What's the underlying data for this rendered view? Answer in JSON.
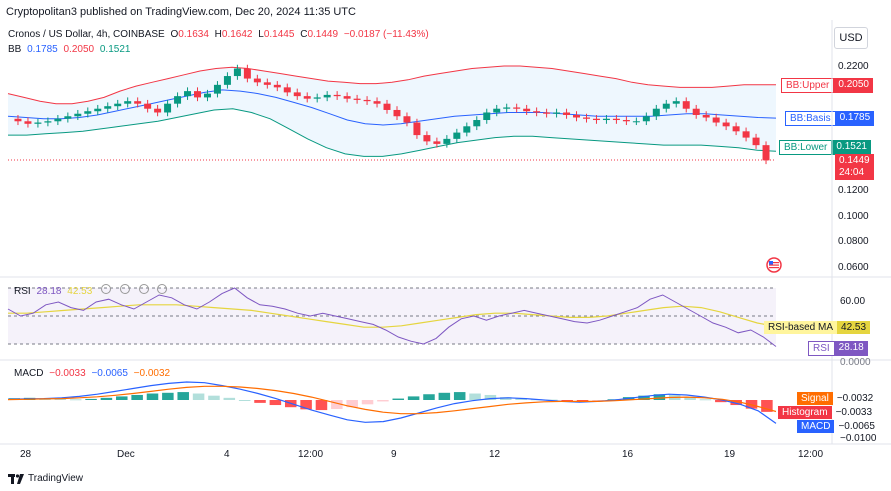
{
  "publisher_line": "Cryptopolitan3 published on TradingView.com, Dec 20, 2024 11:35 UTC",
  "symbol": {
    "title": "Cronos / US Dollar, 4h, COINBASE",
    "o_label": "O",
    "o": "0.1634",
    "h_label": "H",
    "h": "0.1642",
    "l_label": "L",
    "l": "0.1445",
    "c_label": "C",
    "c": "0.1449",
    "change": "−0.0187 (−11.43%)"
  },
  "bb_legend": {
    "name": "BB",
    "basis": "0.1785",
    "upper": "0.2050",
    "lower": "0.1521"
  },
  "currency_button": "USD",
  "price_axis": [
    "0.2200",
    "0.1400",
    "0.1200",
    "0.1000",
    "0.0800",
    "0.0600"
  ],
  "price_tags": {
    "bb_upper_label": "BB:Upper",
    "bb_upper_value": "0.2050",
    "bb_basis_label": "BB:Basis",
    "bb_basis_value": "0.1785",
    "bb_lower_label": "BB:Lower",
    "bb_lower_value": "0.1521",
    "last_price": "0.1449",
    "countdown": "24:04"
  },
  "rsi": {
    "legend_name": "RSI",
    "legend_value": "28.18",
    "legend_ma": "42.53",
    "axis_60": "60.00",
    "axis_0": "0.0000",
    "ma_label": "RSI-based MA",
    "ma_value": "42.53",
    "rsi_label": "RSI",
    "rsi_value": "28.18"
  },
  "macd": {
    "legend_name": "MACD",
    "v1": "−0.0033",
    "v2": "−0.0065",
    "v3": "−0.0032",
    "signal_label": "Signal",
    "signal_value": "−0.0032",
    "hist_label": "Histogram",
    "hist_value": "−0.0033",
    "macd_label": "MACD",
    "macd_value": "−0.0065",
    "axis_neg": "−0.0100"
  },
  "x_axis": [
    "28",
    "Dec",
    "4",
    "12:00",
    "9",
    "12",
    "16",
    "19",
    "12:00"
  ],
  "footer": "TradingView",
  "colors": {
    "up": "#089981",
    "down": "#f23645",
    "upper": "#f23645",
    "basis": "#2962ff",
    "lower": "#089981",
    "rsi": "#7e57c2",
    "rsi_ma": "#e5d53f",
    "signal": "#ff6d00",
    "macd": "#2962ff"
  },
  "chart_data": [
    {
      "type": "line",
      "title": "Cronos / US Dollar, 4h, COINBASE",
      "x_ticks": [
        "28",
        "Dec",
        "4",
        "12:00",
        "9",
        "12",
        "16",
        "19",
        "12:00"
      ],
      "y_ticks": [
        0.22,
        0.14,
        0.12,
        0.1,
        0.08,
        0.06
      ],
      "close": [
        0.178,
        0.176,
        0.174,
        0.175,
        0.176,
        0.178,
        0.18,
        0.182,
        0.184,
        0.186,
        0.188,
        0.19,
        0.192,
        0.19,
        0.186,
        0.183,
        0.19,
        0.196,
        0.2,
        0.195,
        0.198,
        0.205,
        0.212,
        0.218,
        0.21,
        0.207,
        0.205,
        0.203,
        0.199,
        0.196,
        0.194,
        0.195,
        0.197,
        0.196,
        0.194,
        0.193,
        0.192,
        0.19,
        0.185,
        0.18,
        0.175,
        0.165,
        0.16,
        0.158,
        0.162,
        0.167,
        0.172,
        0.177,
        0.183,
        0.186,
        0.187,
        0.186,
        0.184,
        0.183,
        0.182,
        0.183,
        0.181,
        0.179,
        0.178,
        0.177,
        0.178,
        0.177,
        0.176,
        0.176,
        0.18,
        0.186,
        0.19,
        0.192,
        0.186,
        0.181,
        0.179,
        0.175,
        0.172,
        0.168,
        0.163,
        0.157,
        0.1449
      ],
      "bb_upper": [
        0.198,
        0.195,
        0.192,
        0.19,
        0.19,
        0.192,
        0.195,
        0.2,
        0.204,
        0.207,
        0.21,
        0.213,
        0.216,
        0.218,
        0.219,
        0.218,
        0.216,
        0.214,
        0.212,
        0.21,
        0.208,
        0.207,
        0.206,
        0.206,
        0.207,
        0.209,
        0.212,
        0.214,
        0.216,
        0.218,
        0.219,
        0.22,
        0.22,
        0.219,
        0.218,
        0.216,
        0.214,
        0.212,
        0.21,
        0.207,
        0.205,
        0.204,
        0.203,
        0.203,
        0.203,
        0.204,
        0.205,
        0.205,
        0.205
      ],
      "bb_basis": [
        0.18,
        0.179,
        0.178,
        0.178,
        0.179,
        0.181,
        0.184,
        0.187,
        0.19,
        0.193,
        0.196,
        0.199,
        0.201,
        0.2,
        0.198,
        0.195,
        0.191,
        0.187,
        0.182,
        0.177,
        0.174,
        0.173,
        0.174,
        0.176,
        0.178,
        0.18,
        0.181,
        0.182,
        0.183,
        0.183,
        0.183,
        0.182,
        0.181,
        0.18,
        0.18,
        0.18,
        0.18,
        0.181,
        0.182,
        0.182,
        0.181,
        0.18,
        0.179,
        0.1785
      ],
      "bb_lower": [
        0.165,
        0.165,
        0.166,
        0.167,
        0.168,
        0.17,
        0.172,
        0.174,
        0.176,
        0.179,
        0.182,
        0.185,
        0.186,
        0.183,
        0.178,
        0.17,
        0.162,
        0.155,
        0.15,
        0.148,
        0.148,
        0.15,
        0.153,
        0.156,
        0.159,
        0.161,
        0.163,
        0.164,
        0.164,
        0.163,
        0.162,
        0.161,
        0.16,
        0.159,
        0.158,
        0.157,
        0.157,
        0.157,
        0.156,
        0.155,
        0.153,
        0.1521
      ]
    },
    {
      "type": "line",
      "title": "RSI",
      "y_ticks": [
        60,
        0
      ],
      "rsi": [
        55,
        50,
        52,
        58,
        60,
        56,
        54,
        60,
        62,
        58,
        55,
        60,
        65,
        63,
        58,
        55,
        60,
        66,
        70,
        63,
        58,
        57,
        55,
        52,
        50,
        52,
        50,
        48,
        46,
        44,
        40,
        35,
        32,
        30,
        34,
        42,
        48,
        50,
        47,
        50,
        52,
        54,
        52,
        50,
        48,
        46,
        45,
        47,
        50,
        53,
        56,
        62,
        65,
        60,
        55,
        50,
        45,
        42,
        38,
        40,
        35,
        28.18
      ],
      "rsi_ma": [
        52,
        52,
        53,
        54,
        55,
        56,
        57,
        58,
        58,
        58,
        57,
        56,
        55,
        54,
        52,
        50,
        48,
        46,
        44,
        42,
        42,
        43,
        45,
        47,
        49,
        51,
        52,
        52,
        51,
        50,
        49,
        49,
        50,
        52,
        54,
        56,
        57,
        56,
        53,
        49,
        45,
        42.53
      ]
    },
    {
      "type": "bar",
      "title": "MACD",
      "y_ticks": [
        -0.01
      ],
      "histogram": [
        0.0005,
        0.0006,
        0.0004,
        0.0003,
        0.0002,
        0.0003,
        0.0006,
        0.001,
        0.0014,
        0.0018,
        0.002,
        0.0022,
        0.0018,
        0.0012,
        0.0006,
        0.0,
        -0.0008,
        -0.0014,
        -0.002,
        -0.0026,
        -0.0028,
        -0.0025,
        -0.002,
        -0.0012,
        -0.0004,
        0.0004,
        0.001,
        0.0016,
        0.002,
        0.0022,
        0.0018,
        0.0014,
        0.0008,
        0.0004,
        0.0002,
        0.0001,
        -0.0002,
        -0.0004,
        -0.0003,
        0.0002,
        0.0008,
        0.0012,
        0.0016,
        0.0014,
        0.0008,
        0.0002,
        -0.0006,
        -0.0014,
        -0.0024,
        -0.0033
      ],
      "macd": [
        0.0002,
        0.0003,
        0.0004,
        0.0006,
        0.001,
        0.0016,
        0.0024,
        0.0032,
        0.004,
        0.0046,
        0.005,
        0.0048,
        0.004,
        0.003,
        0.0018,
        0.0004,
        -0.0012,
        -0.0028,
        -0.0042,
        -0.0055,
        -0.0062,
        -0.006,
        -0.005,
        -0.0036,
        -0.0022,
        -0.001,
        -0.0002,
        0.0004,
        0.0006,
        0.0004,
        0.0,
        -0.0004,
        -0.0006,
        -0.0004,
        0.0,
        0.0006,
        0.0012,
        0.0016,
        0.0014,
        0.0008,
        0.0,
        -0.0012,
        -0.003,
        -0.0065
      ],
      "signal": [
        0.0001,
        0.0002,
        0.0003,
        0.0004,
        0.0006,
        0.0009,
        0.0013,
        0.0018,
        0.0024,
        0.003,
        0.0035,
        0.0038,
        0.0038,
        0.0036,
        0.0032,
        0.0026,
        0.0018,
        0.0008,
        -0.0004,
        -0.0016,
        -0.0026,
        -0.0034,
        -0.0038,
        -0.0038,
        -0.0035,
        -0.003,
        -0.0024,
        -0.0018,
        -0.0012,
        -0.0008,
        -0.0005,
        -0.0004,
        -0.0004,
        -0.0004,
        -0.0002,
        0.0001,
        0.0004,
        0.0007,
        0.0008,
        0.0006,
        0.0002,
        -0.0006,
        -0.0018,
        -0.0032
      ]
    }
  ]
}
